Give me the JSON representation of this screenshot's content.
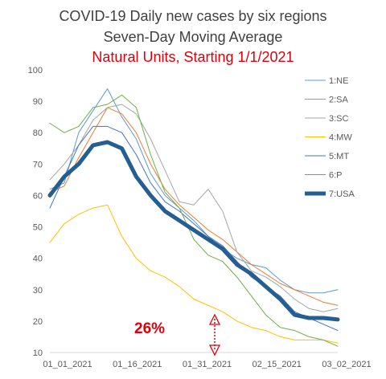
{
  "chart_data": {
    "type": "line",
    "title": "COVID-19 Daily new cases by six regions",
    "subtitle": "Seven-Day Moving Average",
    "subtitle2": "Natural Units, Starting 1/1/2021",
    "annotation": "26%",
    "xlabel": "",
    "ylabel": "",
    "x_ticks": [
      "01_01_2021",
      "01_16_2021",
      "01_31_2021",
      "02_15_2021",
      "03_02_2021"
    ],
    "ylim": [
      10,
      100
    ],
    "y_ticks": [
      10,
      20,
      30,
      40,
      50,
      60,
      70,
      80,
      90,
      100
    ],
    "x": [
      1,
      4,
      7,
      10,
      13,
      16,
      19,
      22,
      25,
      28,
      31,
      34,
      37,
      40,
      43,
      46,
      49,
      52,
      55,
      58,
      61
    ],
    "grid": false,
    "legend_position": "right",
    "series": [
      {
        "name": "1:NE",
        "color": "#5b9bd5",
        "width": 1,
        "values": [
          62,
          64,
          80,
          87,
          94,
          85,
          78,
          67,
          60,
          56,
          52,
          47,
          43,
          40,
          38,
          37,
          33,
          30,
          29,
          29,
          30
        ]
      },
      {
        "name": "2:SA",
        "color": "#ed7d31",
        "width": 1,
        "values": [
          61,
          63,
          72,
          80,
          88,
          86,
          80,
          70,
          62,
          57,
          53,
          49,
          46,
          42,
          38,
          35,
          32,
          30,
          28,
          26,
          25
        ]
      },
      {
        "name": "3:SC",
        "color": "#a5a5a5",
        "width": 1,
        "values": [
          65,
          70,
          76,
          84,
          88,
          89,
          86,
          78,
          68,
          58,
          57,
          62,
          55,
          42,
          36,
          34,
          31,
          27,
          24,
          23,
          24
        ]
      },
      {
        "name": "4:MW",
        "color": "#ffc000",
        "width": 1,
        "values": [
          45,
          51,
          54,
          56,
          57,
          47,
          40,
          36,
          34,
          31,
          27,
          25,
          23,
          20,
          18,
          17,
          15,
          14,
          14,
          14,
          13
        ]
      },
      {
        "name": "5:MT",
        "color": "#4472c4",
        "width": 1,
        "values": [
          56,
          66,
          76,
          82,
          82,
          80,
          73,
          64,
          58,
          55,
          51,
          47,
          44,
          39,
          34,
          31,
          28,
          23,
          21,
          19,
          17
        ]
      },
      {
        "name": "6:P",
        "color": "#70ad47",
        "width": 1,
        "values": [
          83,
          80,
          82,
          88,
          89,
          92,
          88,
          73,
          61,
          56,
          46,
          41,
          39,
          34,
          28,
          22,
          18,
          17,
          15,
          14,
          12
        ]
      },
      {
        "name": "7:USA",
        "color": "#255e91",
        "width": 5,
        "values": [
          60,
          66,
          70,
          76,
          77,
          75,
          66,
          60,
          55,
          52,
          49,
          46,
          43,
          38,
          35,
          31,
          27,
          22,
          21,
          21,
          20.5
        ]
      }
    ]
  }
}
